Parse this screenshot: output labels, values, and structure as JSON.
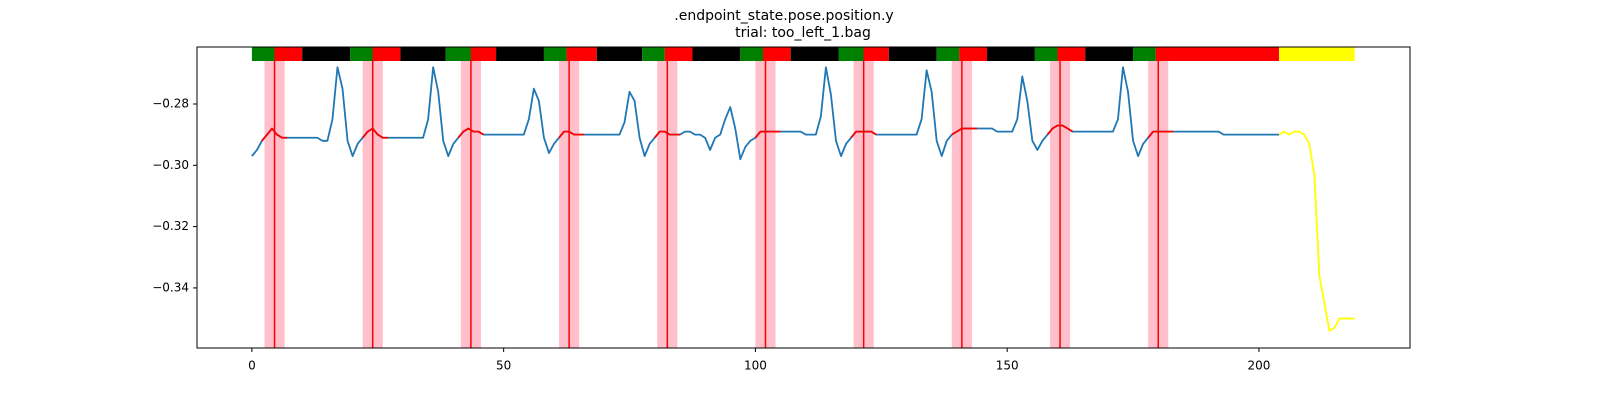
{
  "chart_data": {
    "type": "line",
    "title": ".endpoint_state.pose.position.y",
    "subtitle": "trial: too_left_1.bag",
    "xlim": [
      -10.9,
      230
    ],
    "ylim": [
      -0.3596,
      -0.2614
    ],
    "xticks": [
      0,
      50,
      100,
      150,
      200
    ],
    "yticks": [
      {
        "value": -0.34,
        "label": "−0.34"
      },
      {
        "value": -0.32,
        "label": "−0.32"
      },
      {
        "value": -0.3,
        "label": "−0.30"
      },
      {
        "value": -0.28,
        "label": "−0.28"
      }
    ],
    "series": [
      {
        "color": "#1f77b4",
        "x": [
          0,
          1,
          2,
          3,
          4,
          5,
          6,
          7,
          8,
          9,
          10,
          11,
          12,
          13,
          14,
          15,
          16,
          17,
          18,
          19,
          20,
          21,
          22,
          23,
          24,
          25,
          26,
          27,
          28,
          29,
          30,
          31,
          32,
          33,
          34,
          35,
          36,
          37,
          38,
          39,
          40,
          41,
          42,
          43,
          44,
          45,
          46,
          47,
          48,
          49,
          50,
          51,
          52,
          53,
          54,
          55,
          56,
          57,
          58,
          59,
          60,
          61,
          62,
          63,
          64,
          65,
          66,
          67,
          68,
          69,
          70,
          71,
          72,
          73,
          74,
          75,
          76,
          77,
          78,
          79,
          80,
          81,
          82,
          83,
          84,
          85,
          86,
          87,
          88,
          89,
          90,
          91,
          92,
          93,
          94,
          95,
          96,
          97,
          98,
          99,
          100,
          101,
          102,
          103,
          104,
          105,
          106,
          107,
          108,
          109,
          110,
          111,
          112,
          113,
          114,
          115,
          116,
          117,
          118,
          119,
          120,
          121,
          122,
          123,
          124,
          125,
          126,
          127,
          128,
          129,
          130,
          131,
          132,
          133,
          134,
          135,
          136,
          137,
          138,
          139,
          140,
          141,
          142,
          143,
          144,
          145,
          146,
          147,
          148,
          149,
          150,
          151,
          152,
          153,
          154,
          155,
          156,
          157,
          158,
          159,
          160,
          161,
          162,
          163,
          164,
          165,
          166,
          167,
          168,
          169,
          170,
          171,
          172,
          173,
          174,
          175,
          176,
          177,
          178,
          179,
          180,
          181,
          182,
          183,
          184,
          185,
          186,
          187,
          188,
          189,
          190,
          191,
          192,
          193,
          194,
          195,
          196,
          197,
          198,
          199,
          200,
          201,
          202,
          203,
          204
        ],
        "values": [
          -0.297,
          -0.295,
          -0.292,
          -0.29,
          -0.288,
          -0.29,
          -0.291,
          -0.291,
          -0.291,
          -0.291,
          -0.291,
          -0.291,
          -0.291,
          -0.291,
          -0.292,
          -0.292,
          -0.285,
          -0.268,
          -0.275,
          -0.292,
          -0.297,
          -0.293,
          -0.291,
          -0.289,
          -0.288,
          -0.29,
          -0.291,
          -0.291,
          -0.291,
          -0.291,
          -0.291,
          -0.291,
          -0.291,
          -0.291,
          -0.291,
          -0.285,
          -0.268,
          -0.276,
          -0.292,
          -0.297,
          -0.293,
          -0.291,
          -0.289,
          -0.288,
          -0.289,
          -0.289,
          -0.29,
          -0.29,
          -0.29,
          -0.29,
          -0.29,
          -0.29,
          -0.29,
          -0.29,
          -0.29,
          -0.285,
          -0.275,
          -0.279,
          -0.291,
          -0.296,
          -0.293,
          -0.291,
          -0.289,
          -0.289,
          -0.29,
          -0.29,
          -0.29,
          -0.29,
          -0.29,
          -0.29,
          -0.29,
          -0.29,
          -0.29,
          -0.29,
          -0.286,
          -0.276,
          -0.279,
          -0.291,
          -0.297,
          -0.293,
          -0.291,
          -0.289,
          -0.289,
          -0.29,
          -0.29,
          -0.29,
          -0.289,
          -0.289,
          -0.29,
          -0.29,
          -0.291,
          -0.295,
          -0.291,
          -0.29,
          -0.285,
          -0.281,
          -0.288,
          -0.298,
          -0.294,
          -0.292,
          -0.291,
          -0.289,
          -0.289,
          -0.289,
          -0.289,
          -0.289,
          -0.289,
          -0.289,
          -0.289,
          -0.289,
          -0.29,
          -0.29,
          -0.29,
          -0.284,
          -0.268,
          -0.277,
          -0.292,
          -0.297,
          -0.293,
          -0.291,
          -0.289,
          -0.289,
          -0.289,
          -0.289,
          -0.29,
          -0.29,
          -0.29,
          -0.29,
          -0.29,
          -0.29,
          -0.29,
          -0.29,
          -0.29,
          -0.285,
          -0.269,
          -0.276,
          -0.292,
          -0.297,
          -0.292,
          -0.29,
          -0.289,
          -0.288,
          -0.288,
          -0.288,
          -0.288,
          -0.288,
          -0.288,
          -0.288,
          -0.289,
          -0.289,
          -0.289,
          -0.289,
          -0.285,
          -0.271,
          -0.279,
          -0.292,
          -0.295,
          -0.292,
          -0.29,
          -0.288,
          -0.287,
          -0.287,
          -0.288,
          -0.289,
          -0.289,
          -0.289,
          -0.289,
          -0.289,
          -0.289,
          -0.289,
          -0.289,
          -0.289,
          -0.285,
          -0.268,
          -0.276,
          -0.292,
          -0.297,
          -0.293,
          -0.291,
          -0.289,
          -0.289,
          -0.289,
          -0.289,
          -0.289,
          -0.289,
          -0.289,
          -0.289,
          -0.289,
          -0.289,
          -0.289,
          -0.289,
          -0.289,
          -0.289,
          -0.29,
          -0.29,
          -0.29,
          -0.29,
          -0.29,
          -0.29,
          -0.29,
          -0.29,
          -0.29,
          -0.29,
          -0.29,
          -0.29
        ]
      },
      {
        "color": "#ff0000",
        "x": [
          2,
          3,
          4,
          5,
          6,
          7,
          null,
          22,
          23,
          24,
          25,
          26,
          27,
          null,
          41,
          42,
          43,
          44,
          45,
          46,
          null,
          61,
          62,
          63,
          64,
          65,
          66,
          null,
          80,
          81,
          82,
          83,
          84,
          85,
          null,
          100,
          101,
          102,
          103,
          104,
          105,
          null,
          119,
          120,
          121,
          122,
          123,
          124,
          null,
          139,
          140,
          141,
          142,
          143,
          144,
          null,
          158,
          159,
          160,
          161,
          162,
          163,
          null,
          178,
          179,
          180,
          181,
          182,
          183
        ],
        "values": [
          -0.292,
          -0.29,
          -0.288,
          -0.29,
          -0.291,
          -0.291,
          null,
          -0.291,
          -0.289,
          -0.288,
          -0.29,
          -0.291,
          -0.291,
          null,
          -0.291,
          -0.289,
          -0.288,
          -0.289,
          -0.289,
          -0.29,
          null,
          -0.291,
          -0.289,
          -0.289,
          -0.29,
          -0.29,
          -0.29,
          null,
          -0.291,
          -0.289,
          -0.289,
          -0.29,
          -0.29,
          -0.29,
          null,
          -0.291,
          -0.289,
          -0.289,
          -0.289,
          -0.289,
          -0.289,
          null,
          -0.291,
          -0.289,
          -0.289,
          -0.289,
          -0.289,
          -0.29,
          null,
          -0.29,
          -0.289,
          -0.288,
          -0.288,
          -0.288,
          -0.288,
          null,
          -0.29,
          -0.288,
          -0.287,
          -0.287,
          -0.288,
          -0.289,
          null,
          -0.291,
          -0.289,
          -0.289,
          -0.289,
          -0.289,
          -0.289
        ]
      },
      {
        "color": "#ffff00",
        "x": [
          204,
          205,
          206,
          207,
          208,
          209,
          210,
          211,
          212,
          213,
          214,
          215,
          216,
          217,
          218,
          219
        ],
        "values": [
          -0.29,
          -0.289,
          -0.29,
          -0.289,
          -0.289,
          -0.29,
          -0.293,
          -0.303,
          -0.336,
          -0.345,
          -0.354,
          -0.353,
          -0.35,
          -0.35,
          -0.35,
          -0.35
        ]
      }
    ],
    "events": {
      "color": "#ff0000",
      "span_color": "#ffc0cb",
      "lines": [
        4.5,
        24,
        43.5,
        63,
        82.5,
        102,
        121.5,
        141,
        160.5,
        180
      ],
      "span_starts": [
        2.5,
        22,
        41.5,
        61,
        80.5,
        100,
        119.5,
        139,
        158.5,
        178
      ],
      "span_ends": [
        6.5,
        26,
        45.5,
        65,
        84.5,
        104,
        123.5,
        143,
        162.5,
        182
      ]
    },
    "phases": {
      "starts": [
        0,
        4.5,
        10,
        19.5,
        24,
        29.5,
        38.5,
        43.5,
        48.5,
        58,
        62.5,
        68.5,
        77.5,
        82,
        87.5,
        97,
        101.5,
        107,
        116.5,
        121.5,
        126.5,
        136,
        140.5,
        146,
        155.5,
        160,
        165.5,
        175,
        179.5,
        204
      ],
      "ends": [
        4.5,
        10,
        19.5,
        24,
        29.5,
        38.5,
        43.5,
        48.5,
        58,
        62.5,
        68.5,
        77.5,
        82,
        87.5,
        97,
        101.5,
        107,
        116.5,
        121.5,
        126.5,
        136,
        140.5,
        146,
        155.5,
        160,
        165.5,
        175,
        179.5,
        204,
        219
      ],
      "colors": [
        "#008000",
        "#ff0000",
        "#000000",
        "#008000",
        "#ff0000",
        "#000000",
        "#008000",
        "#ff0000",
        "#000000",
        "#008000",
        "#ff0000",
        "#000000",
        "#008000",
        "#ff0000",
        "#000000",
        "#008000",
        "#ff0000",
        "#000000",
        "#008000",
        "#ff0000",
        "#000000",
        "#008000",
        "#ff0000",
        "#000000",
        "#008000",
        "#ff0000",
        "#000000",
        "#008000",
        "#ff0000",
        "#ffff00"
      ]
    }
  }
}
